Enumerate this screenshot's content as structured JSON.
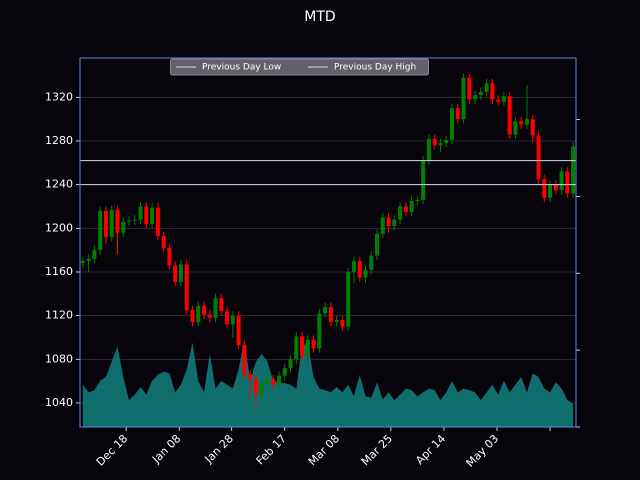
{
  "chart_data": {
    "type": "candlestick",
    "title": "MTD",
    "xlim": [
      -0.5,
      85.5
    ],
    "xticks": [
      {
        "value": 7.5,
        "label": "Dec 18"
      },
      {
        "value": 16.7,
        "label": "Jan 08"
      },
      {
        "value": 25.8,
        "label": "Jan 28"
      },
      {
        "value": 35,
        "label": "Feb 17"
      },
      {
        "value": 44.2,
        "label": "Mar 08"
      },
      {
        "value": 53.4,
        "label": "Mar 25"
      },
      {
        "value": 62.6,
        "label": "Apr 14"
      },
      {
        "value": 71.8,
        "label": "May 03"
      },
      {
        "value": 81,
        "label": null
      }
    ],
    "ylim": [
      1018,
      1356
    ],
    "yticks": [
      1040,
      1080,
      1120,
      1160,
      1200,
      1240,
      1280,
      1320
    ],
    "y2lim": [
      0,
      4.8
    ],
    "y2ticks": [
      0,
      1,
      2,
      3,
      4
    ],
    "grid": true,
    "legend": "upper center",
    "up_color": "#008000",
    "down_color": "#ff0000",
    "volume_color": "#137a7a",
    "open": [
      1168,
      1170,
      1172,
      1180,
      1216,
      1192,
      1217,
      1196,
      1206,
      1207,
      1208,
      1220,
      1204,
      1219,
      1193,
      1182,
      1166,
      1151,
      1167,
      1125,
      1114,
      1129,
      1121,
      1118,
      1136,
      1124,
      1112,
      1120,
      1093,
      1066,
      1062,
      1048,
      1058,
      1062,
      1057,
      1065,
      1072,
      1080,
      1101,
      1083,
      1098,
      1090,
      1122,
      1128,
      1114,
      1116,
      1110,
      1160,
      1170,
      1155,
      1162,
      1175,
      1195,
      1210,
      1202,
      1208,
      1220,
      1215,
      1225,
      1226,
      1262,
      1282,
      1276,
      1278,
      1281,
      1310,
      1300,
      1338,
      1318,
      1322,
      1325,
      1333,
      1318,
      1316,
      1321,
      1286,
      1298,
      1295,
      1300,
      1285,
      1245,
      1228,
      1240,
      1235,
      1252,
      1232
    ],
    "high": [
      1174,
      1176,
      1184,
      1220,
      1220,
      1221,
      1221,
      1210,
      1211,
      1212,
      1224,
      1224,
      1223,
      1223,
      1197,
      1186,
      1170,
      1171,
      1171,
      1129,
      1133,
      1133,
      1125,
      1140,
      1140,
      1128,
      1124,
      1124,
      1097,
      1070,
      1066,
      1062,
      1066,
      1066,
      1069,
      1076,
      1084,
      1105,
      1105,
      1102,
      1102,
      1126,
      1132,
      1132,
      1120,
      1120,
      1164,
      1174,
      1174,
      1166,
      1179,
      1199,
      1214,
      1214,
      1212,
      1224,
      1224,
      1230,
      1230,
      1266,
      1286,
      1286,
      1282,
      1285,
      1314,
      1314,
      1342,
      1342,
      1326,
      1329,
      1337,
      1337,
      1322,
      1325,
      1325,
      1302,
      1302,
      1331,
      1304,
      1289,
      1249,
      1244,
      1244,
      1256,
      1256,
      1279
    ],
    "low": [
      1164,
      1160,
      1168,
      1176,
      1186,
      1188,
      1176,
      1192,
      1202,
      1203,
      1204,
      1200,
      1200,
      1189,
      1178,
      1162,
      1147,
      1147,
      1121,
      1110,
      1110,
      1117,
      1114,
      1114,
      1120,
      1108,
      1100,
      1089,
      1062,
      1045,
      1036,
      1044,
      1054,
      1053,
      1053,
      1061,
      1068,
      1076,
      1079,
      1079,
      1086,
      1086,
      1118,
      1110,
      1110,
      1106,
      1106,
      1150,
      1151,
      1150,
      1158,
      1171,
      1191,
      1196,
      1198,
      1204,
      1211,
      1211,
      1221,
      1222,
      1258,
      1272,
      1270,
      1274,
      1277,
      1296,
      1296,
      1314,
      1314,
      1318,
      1321,
      1314,
      1312,
      1312,
      1282,
      1282,
      1291,
      1291,
      1278,
      1241,
      1224,
      1224,
      1231,
      1231,
      1228,
      1228
    ],
    "close": [
      1170,
      1172,
      1180,
      1216,
      1192,
      1217,
      1196,
      1206,
      1207,
      1208,
      1220,
      1204,
      1219,
      1193,
      1182,
      1166,
      1151,
      1167,
      1125,
      1114,
      1129,
      1121,
      1118,
      1136,
      1124,
      1112,
      1120,
      1093,
      1066,
      1062,
      1048,
      1058,
      1062,
      1057,
      1065,
      1072,
      1080,
      1101,
      1083,
      1098,
      1090,
      1122,
      1128,
      1114,
      1116,
      1110,
      1160,
      1170,
      1155,
      1162,
      1175,
      1195,
      1210,
      1202,
      1208,
      1220,
      1215,
      1225,
      1226,
      1262,
      1282,
      1276,
      1278,
      1281,
      1310,
      1300,
      1338,
      1318,
      1322,
      1325,
      1333,
      1318,
      1316,
      1321,
      1286,
      1298,
      1295,
      1300,
      1285,
      1245,
      1228,
      1240,
      1235,
      1252,
      1232,
      1275
    ],
    "volume": [
      0.55,
      0.45,
      0.48,
      0.6,
      0.65,
      0.85,
      1.05,
      0.65,
      0.35,
      0.42,
      0.52,
      0.42,
      0.6,
      0.68,
      0.72,
      0.7,
      0.45,
      0.55,
      0.75,
      1.1,
      0.6,
      0.45,
      0.95,
      0.5,
      0.6,
      0.55,
      0.5,
      0.75,
      1.15,
      0.6,
      0.85,
      0.95,
      0.85,
      0.6,
      0.58,
      0.57,
      0.55,
      0.5,
      1.05,
      1.1,
      0.65,
      0.5,
      0.48,
      0.45,
      0.52,
      0.45,
      0.55,
      0.4,
      0.68,
      0.4,
      0.38,
      0.58,
      0.36,
      0.45,
      0.35,
      0.42,
      0.5,
      0.48,
      0.4,
      0.45,
      0.5,
      0.48,
      0.35,
      0.45,
      0.6,
      0.45,
      0.5,
      0.48,
      0.45,
      0.35,
      0.45,
      0.55,
      0.42,
      0.6,
      0.45,
      0.55,
      0.65,
      0.45,
      0.7,
      0.65,
      0.5,
      0.45,
      0.58,
      0.5,
      0.35,
      0.3
    ],
    "hlines": [
      {
        "name": "Previous Day Low",
        "value": 1240,
        "color": "#d8d8f0"
      },
      {
        "name": "Previous Day High",
        "value": 1262,
        "color": "#d8d8f0"
      }
    ]
  }
}
